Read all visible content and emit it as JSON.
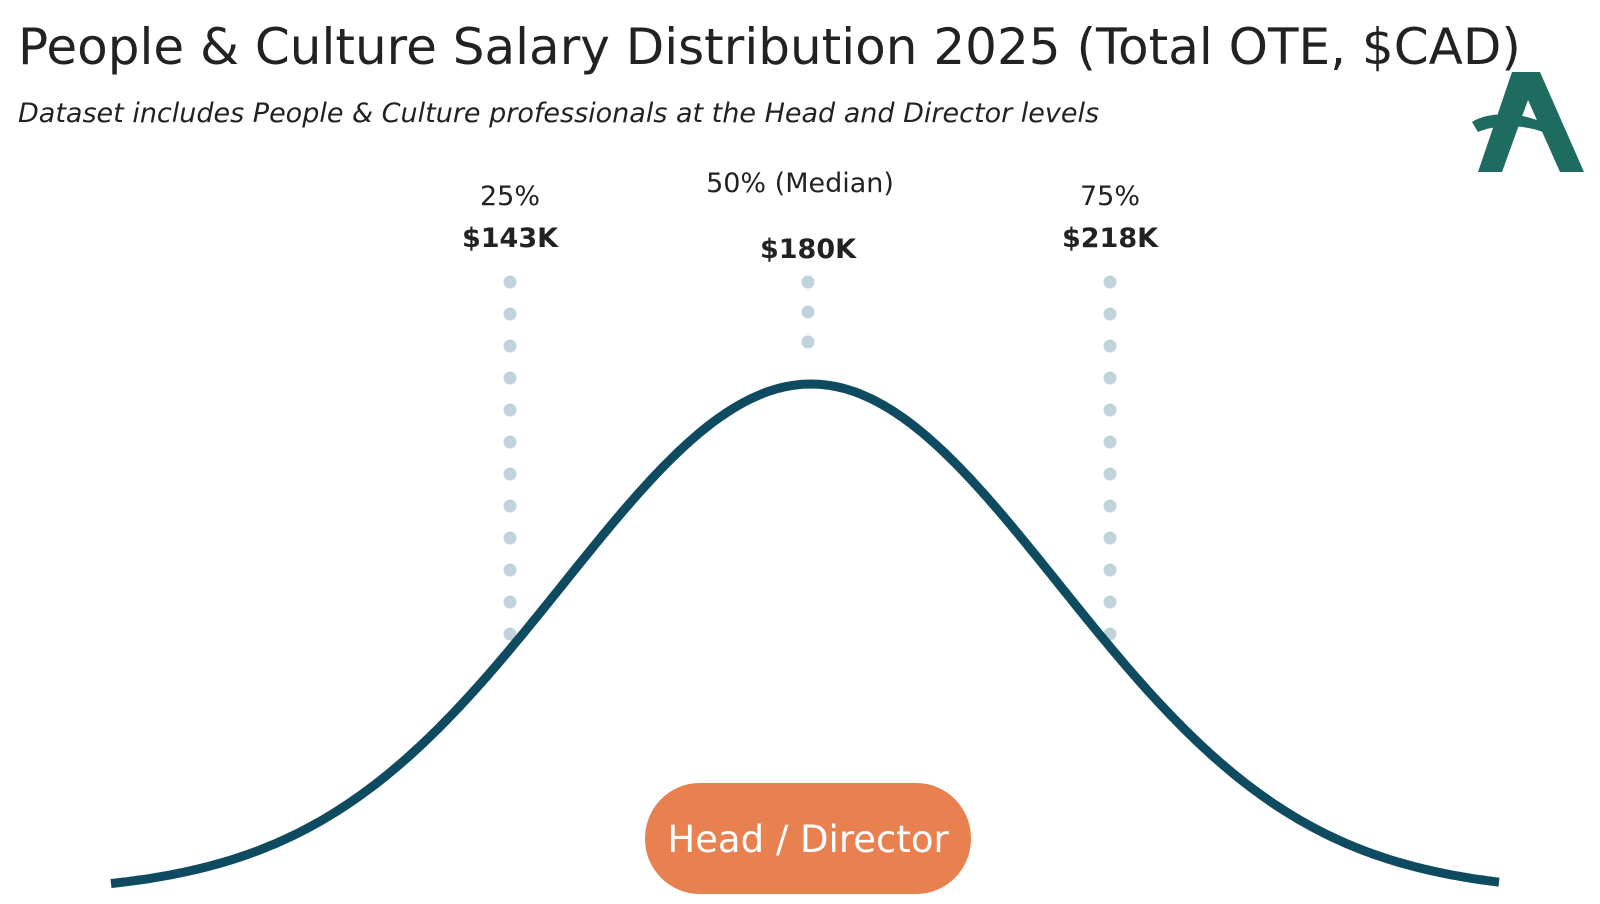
{
  "header": {
    "title": "People & Culture Salary Distribution 2025 (Total OTE, $CAD)",
    "subtitle": "Dataset includes People & Culture professionals at the Head and Director levels"
  },
  "percentiles": [
    {
      "label": "25%",
      "value": "$143K"
    },
    {
      "label": "50% (Median)",
      "value": "$180K"
    },
    {
      "label": "75%",
      "value": "$218K"
    }
  ],
  "badge": "Head / Director"
}
